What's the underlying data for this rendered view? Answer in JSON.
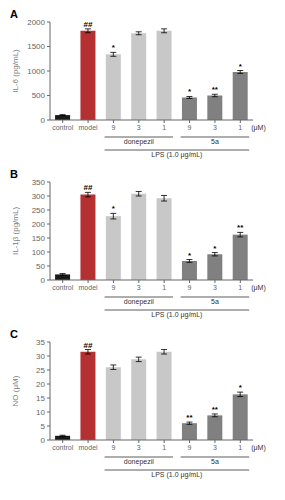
{
  "chart_data": [
    {
      "type": "bar",
      "title": "A",
      "ylabel": "IL-6 (pg/mL)",
      "xlabel": "(μM)",
      "categories": [
        "control",
        "model",
        "9",
        "3",
        "1",
        "9",
        "3",
        "1"
      ],
      "values": [
        100,
        1820,
        1340,
        1770,
        1820,
        460,
        500,
        980
      ],
      "errors": [
        10,
        40,
        40,
        30,
        40,
        20,
        25,
        30
      ],
      "annotations": [
        null,
        "##",
        "*",
        null,
        null,
        "*",
        "**",
        "*"
      ],
      "group_labels": [
        "donepezil",
        "5a",
        "LPS (1.0 μg/mL)"
      ],
      "colors": [
        "#1a1a1a",
        "#b53030",
        "#c8c8c8",
        "#c8c8c8",
        "#c8c8c8",
        "#808080",
        "#808080",
        "#808080"
      ],
      "ylim": [
        0,
        2000
      ],
      "yticks": [
        0,
        500,
        1000,
        1500,
        2000
      ],
      "grid": false
    },
    {
      "type": "bar",
      "title": "B",
      "ylabel": "IL-1β (pg/mL)",
      "xlabel": "(μM)",
      "categories": [
        "control",
        "model",
        "9",
        "3",
        "1",
        "9",
        "3",
        "1"
      ],
      "values": [
        20,
        305,
        228,
        308,
        292,
        68,
        92,
        162
      ],
      "errors": [
        3,
        8,
        10,
        8,
        10,
        5,
        6,
        8
      ],
      "annotations": [
        null,
        "##",
        "*",
        null,
        null,
        "*",
        "*",
        "**"
      ],
      "group_labels": [
        "donepezil",
        "5a",
        "LPS (1.0 μg/mL)"
      ],
      "colors": [
        "#1a1a1a",
        "#b53030",
        "#c8c8c8",
        "#c8c8c8",
        "#c8c8c8",
        "#808080",
        "#808080",
        "#808080"
      ],
      "ylim": [
        0,
        350
      ],
      "yticks": [
        0,
        50,
        100,
        150,
        200,
        250,
        300,
        350
      ],
      "grid": false
    },
    {
      "type": "bar",
      "title": "C",
      "ylabel": "NO (μM)",
      "xlabel": "(μM)",
      "categories": [
        "control",
        "model",
        "9",
        "3",
        "1",
        "9",
        "3",
        "1"
      ],
      "values": [
        1.5,
        31.5,
        26.0,
        28.8,
        31.5,
        6.0,
        8.8,
        16.3
      ],
      "errors": [
        0.2,
        0.8,
        0.8,
        0.8,
        0.8,
        0.4,
        0.5,
        0.8
      ],
      "annotations": [
        null,
        "##",
        null,
        null,
        null,
        "**",
        "**",
        "*"
      ],
      "group_labels": [
        "donepezil",
        "5a",
        "LPS (1.0 μg/mL)"
      ],
      "colors": [
        "#1a1a1a",
        "#b53030",
        "#c8c8c8",
        "#c8c8c8",
        "#c8c8c8",
        "#808080",
        "#808080",
        "#808080"
      ],
      "ylim": [
        0,
        35
      ],
      "yticks": [
        0,
        5,
        10,
        15,
        20,
        25,
        30,
        35
      ],
      "grid": false
    }
  ]
}
